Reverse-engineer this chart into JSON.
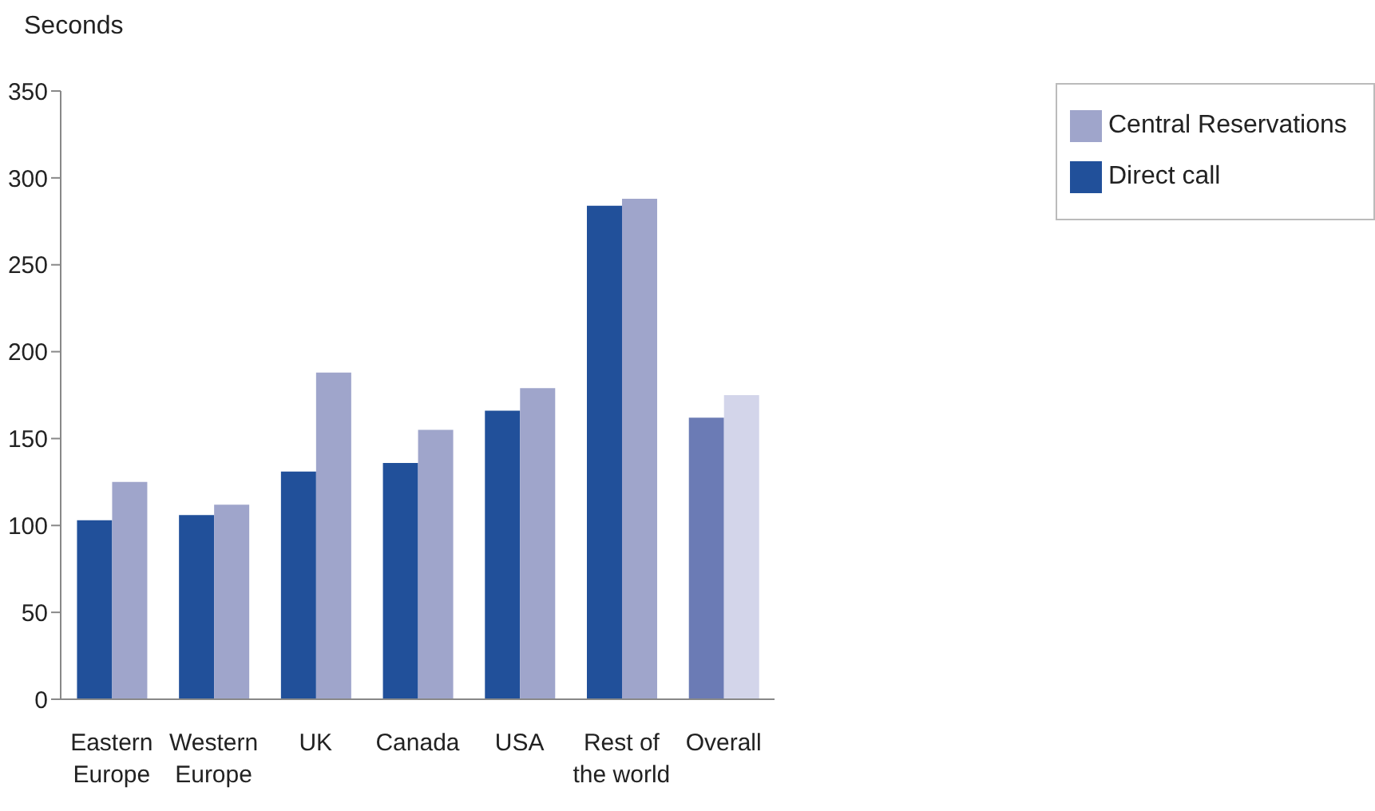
{
  "chart_data": {
    "type": "bar",
    "ylabel": "Seconds",
    "categories": [
      "Eastern Europe",
      "Western Europe",
      "UK",
      "Canada",
      "USA",
      "Rest of the world",
      "Overall"
    ],
    "series": [
      {
        "name": "Direct call",
        "color": "#21509a",
        "colors": [
          "#21509a",
          "#21509a",
          "#21509a",
          "#21509a",
          "#21509a",
          "#21509a",
          "#6b7bb5"
        ],
        "values": [
          103,
          106,
          131,
          136,
          166,
          284,
          162
        ]
      },
      {
        "name": "Central Reservations",
        "color": "#9fa5cb",
        "colors": [
          "#9fa5cb",
          "#9fa5cb",
          "#9fa5cb",
          "#9fa5cb",
          "#9fa5cb",
          "#9fa5cb",
          "#d3d5ea"
        ],
        "values": [
          125,
          112,
          188,
          155,
          179,
          288,
          175
        ]
      }
    ],
    "ylim": [
      0,
      350
    ],
    "yticks": [
      0,
      50,
      100,
      150,
      200,
      250,
      300,
      350
    ],
    "grid": false,
    "legend": "top right"
  }
}
